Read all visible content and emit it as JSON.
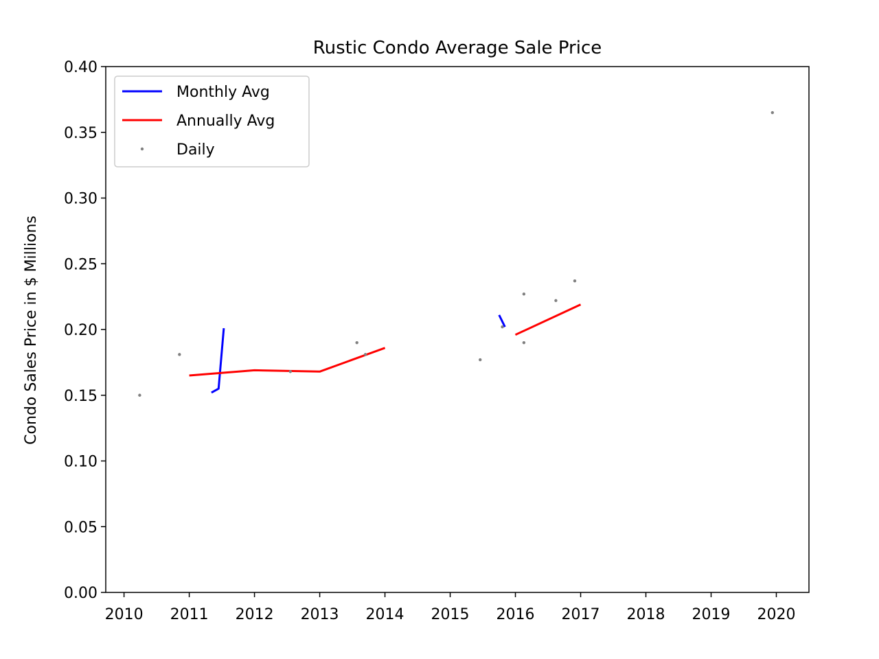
{
  "chart_data": {
    "type": "line",
    "title": "Rustic Condo Average Sale Price",
    "xlabel": "",
    "ylabel": "Condo Sales Price in $ Millions",
    "xlim": [
      2009.72,
      2020.5
    ],
    "ylim": [
      0.0,
      0.4
    ],
    "x_ticks": [
      "2010",
      "2011",
      "2012",
      "2013",
      "2014",
      "2015",
      "2016",
      "2017",
      "2018",
      "2019",
      "2020"
    ],
    "y_ticks": [
      "0.00",
      "0.05",
      "0.10",
      "0.15",
      "0.20",
      "0.25",
      "0.30",
      "0.35",
      "0.40"
    ],
    "grid": false,
    "legend_position": "top-left",
    "series": [
      {
        "name": "Monthly Avg",
        "kind": "line",
        "color": "#0000ff",
        "segments": [
          [
            [
              2011.34,
              0.152
            ],
            [
              2011.45,
              0.155
            ],
            [
              2011.53,
              0.201
            ]
          ],
          [
            [
              2015.75,
              0.211
            ],
            [
              2015.84,
              0.202
            ]
          ]
        ]
      },
      {
        "name": "Annually Avg",
        "kind": "line",
        "color": "#ff0000",
        "segments": [
          [
            [
              2011.0,
              0.165
            ],
            [
              2012.0,
              0.169
            ],
            [
              2013.0,
              0.168
            ],
            [
              2014.0,
              0.186
            ]
          ],
          [
            [
              2016.0,
              0.196
            ],
            [
              2017.0,
              0.219
            ]
          ]
        ]
      },
      {
        "name": "Daily",
        "kind": "scatter",
        "color": "#808080",
        "points": [
          [
            2010.24,
            0.15
          ],
          [
            2010.85,
            0.181
          ],
          [
            2012.55,
            0.168
          ],
          [
            2013.57,
            0.19
          ],
          [
            2013.7,
            0.181
          ],
          [
            2015.46,
            0.177
          ],
          [
            2015.8,
            0.202
          ],
          [
            2016.13,
            0.227
          ],
          [
            2016.13,
            0.19
          ],
          [
            2016.62,
            0.222
          ],
          [
            2016.91,
            0.237
          ],
          [
            2019.94,
            0.365
          ]
        ]
      }
    ]
  }
}
